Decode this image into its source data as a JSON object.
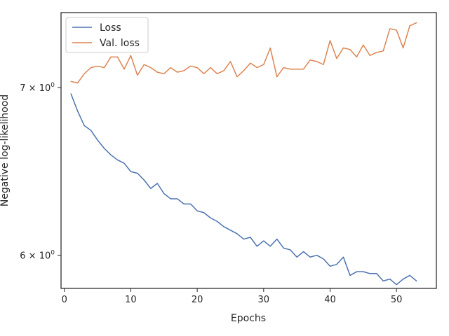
{
  "chart_data": {
    "type": "line",
    "title": "",
    "xlabel": "Epochs",
    "ylabel": "Negative log-likelihood",
    "yscale": "log",
    "xlim": [
      -0.5,
      56
    ],
    "ylim": [
      5.82,
      7.5
    ],
    "xticks": [
      0,
      10,
      20,
      30,
      40,
      50
    ],
    "yticks": [
      {
        "value": 6,
        "base": "6 × 10",
        "exp": "0"
      },
      {
        "value": 7,
        "base": "7 × 10",
        "exp": "0"
      }
    ],
    "grid": false,
    "legend_position": "upper left",
    "x": [
      1,
      2,
      3,
      4,
      5,
      6,
      7,
      8,
      9,
      10,
      11,
      12,
      13,
      14,
      15,
      16,
      17,
      18,
      19,
      20,
      21,
      22,
      23,
      24,
      25,
      26,
      27,
      28,
      29,
      30,
      31,
      32,
      33,
      34,
      35,
      36,
      37,
      38,
      39,
      40,
      41,
      42,
      43,
      44,
      45,
      46,
      47,
      48,
      49,
      50,
      51,
      52,
      53
    ],
    "series": [
      {
        "name": "Loss",
        "color": "#4c72b0",
        "values": [
          6.96,
          6.85,
          6.76,
          6.73,
          6.67,
          6.62,
          6.58,
          6.55,
          6.53,
          6.48,
          6.47,
          6.43,
          6.38,
          6.41,
          6.35,
          6.32,
          6.32,
          6.29,
          6.29,
          6.25,
          6.24,
          6.21,
          6.19,
          6.16,
          6.14,
          6.12,
          6.09,
          6.1,
          6.05,
          6.08,
          6.05,
          6.09,
          6.04,
          6.03,
          5.99,
          6.02,
          5.99,
          6.0,
          5.98,
          5.94,
          5.95,
          5.99,
          5.89,
          5.91,
          5.91,
          5.9,
          5.9,
          5.86,
          5.87,
          5.84,
          5.87,
          5.89,
          5.86
        ]
      },
      {
        "name": "Val. loss",
        "color": "#dd8452",
        "values": [
          7.04,
          7.03,
          7.09,
          7.13,
          7.14,
          7.13,
          7.2,
          7.2,
          7.12,
          7.21,
          7.08,
          7.15,
          7.13,
          7.1,
          7.09,
          7.13,
          7.1,
          7.11,
          7.14,
          7.13,
          7.09,
          7.13,
          7.09,
          7.11,
          7.17,
          7.07,
          7.11,
          7.16,
          7.13,
          7.15,
          7.26,
          7.07,
          7.13,
          7.12,
          7.12,
          7.12,
          7.18,
          7.17,
          7.15,
          7.31,
          7.19,
          7.26,
          7.25,
          7.2,
          7.28,
          7.21,
          7.23,
          7.24,
          7.39,
          7.38,
          7.26,
          7.41,
          7.43
        ]
      }
    ]
  }
}
